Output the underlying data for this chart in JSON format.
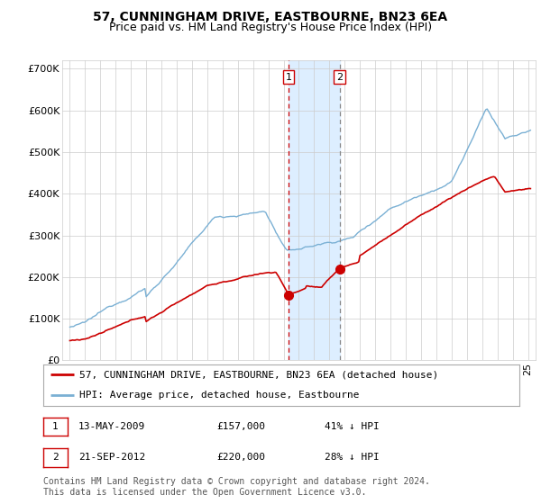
{
  "title": "57, CUNNINGHAM DRIVE, EASTBOURNE, BN23 6EA",
  "subtitle": "Price paid vs. HM Land Registry's House Price Index (HPI)",
  "ylabel_ticks": [
    "£0",
    "£100K",
    "£200K",
    "£300K",
    "£400K",
    "£500K",
    "£600K",
    "£700K"
  ],
  "ytick_values": [
    0,
    100000,
    200000,
    300000,
    400000,
    500000,
    600000,
    700000
  ],
  "ylim": [
    0,
    720000
  ],
  "xlim_start": 1994.5,
  "xlim_end": 2025.5,
  "background_color": "#ffffff",
  "grid_color": "#cccccc",
  "hpi_color": "#7ab0d4",
  "price_color": "#cc0000",
  "sale1_year": 2009,
  "sale1_month": 5,
  "sale1_day": 13,
  "sale1_price": 157000,
  "sale2_year": 2012,
  "sale2_month": 9,
  "sale2_day": 21,
  "sale2_price": 220000,
  "shade_color": "#ddeeff",
  "vline1_color": "#cc0000",
  "vline2_color": "#888888",
  "legend_text_red": "57, CUNNINGHAM DRIVE, EASTBOURNE, BN23 6EA (detached house)",
  "legend_text_blue": "HPI: Average price, detached house, Eastbourne",
  "table_rows": [
    {
      "label": "1",
      "date": "13-MAY-2009",
      "price": "£157,000",
      "pct": "41% ↓ HPI"
    },
    {
      "label": "2",
      "date": "21-SEP-2012",
      "price": "£220,000",
      "pct": "28% ↓ HPI"
    }
  ],
  "footnote": "Contains HM Land Registry data © Crown copyright and database right 2024.\nThis data is licensed under the Open Government Licence v3.0.",
  "title_fontsize": 10,
  "subtitle_fontsize": 9,
  "tick_fontsize": 8,
  "legend_fontsize": 8,
  "table_fontsize": 8,
  "footnote_fontsize": 7
}
